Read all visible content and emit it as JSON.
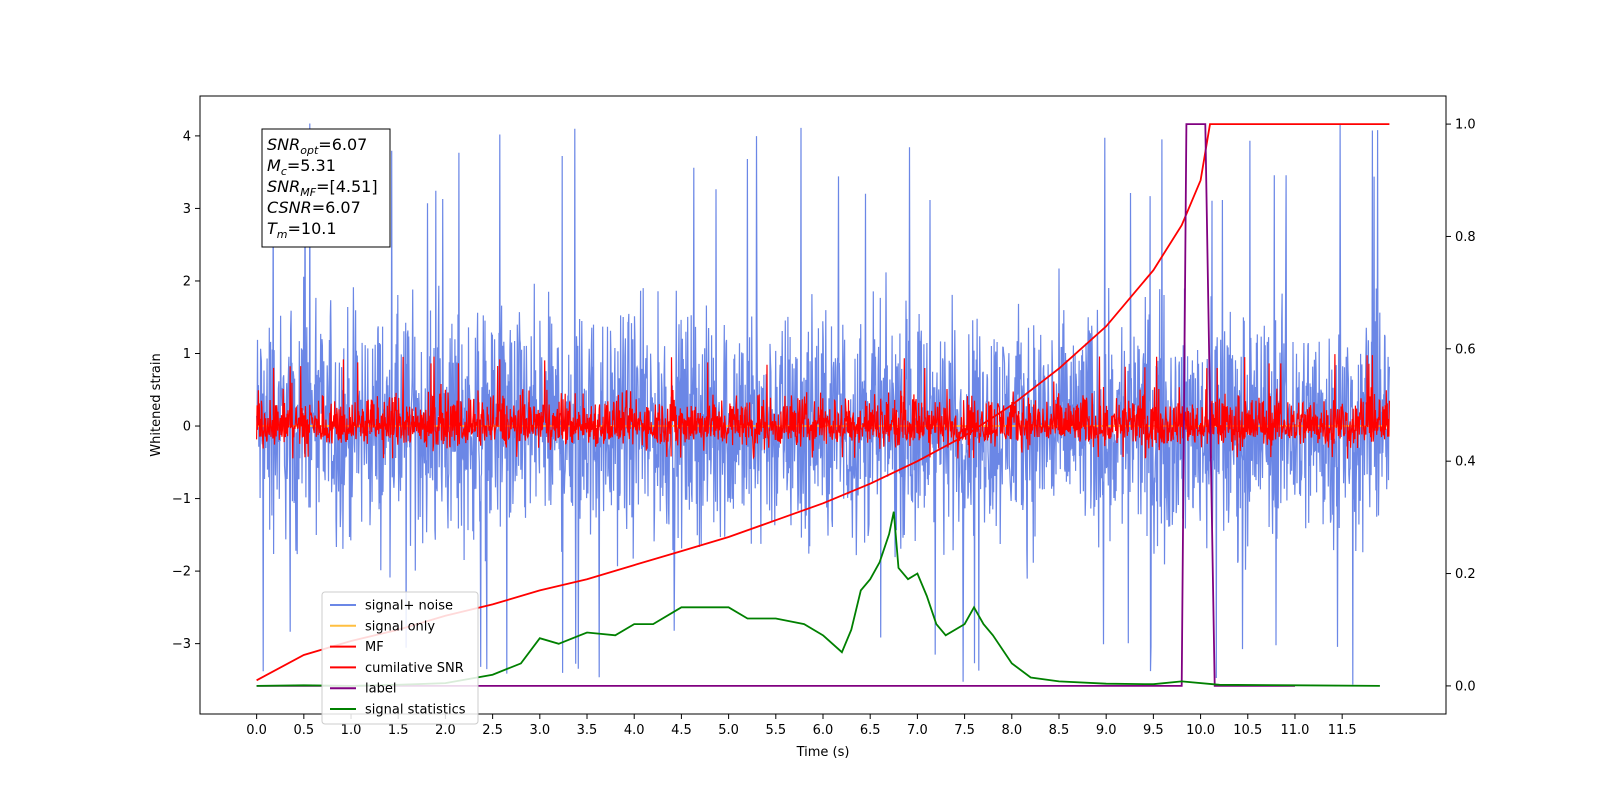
{
  "chart_data": {
    "type": "line",
    "xlabel": "Time (s)",
    "ylabel": "Whitened strain",
    "xlim": [
      -0.6,
      12.6
    ],
    "ylim": [
      -3.97,
      4.55
    ],
    "ylim_right": [
      -0.05,
      1.05
    ],
    "x_ticks": [
      0.0,
      0.5,
      1.0,
      1.5,
      2.0,
      2.5,
      3.0,
      3.5,
      4.0,
      4.5,
      5.0,
      5.5,
      6.0,
      6.5,
      7.0,
      7.5,
      8.0,
      8.5,
      9.0,
      9.5,
      10.0,
      10.5,
      11.0,
      11.5
    ],
    "x_tick_labels": [
      "0.0",
      "0.5",
      "1.0",
      "1.5",
      "2.0",
      "2.5",
      "3.0",
      "3.5",
      "4.0",
      "4.5",
      "5.0",
      "5.5",
      "6.0",
      "6.5",
      "7.0",
      "7.5",
      "8.0",
      "8.5",
      "9.0",
      "9.5",
      "10.0",
      "10.5",
      "11.0",
      "11.5"
    ],
    "y_ticks_left": [
      -3,
      -2,
      -1,
      0,
      1,
      2,
      3,
      4
    ],
    "y_tick_labels_left": [
      "−3",
      "−2",
      "−1",
      "0",
      "1",
      "2",
      "3",
      "4"
    ],
    "y_ticks_right": [
      0.0,
      0.2,
      0.4,
      0.6,
      0.8,
      1.0
    ],
    "y_tick_labels_right": [
      "0.0",
      "0.2",
      "0.4",
      "0.6",
      "0.8",
      "1.0"
    ],
    "grid": false,
    "legend_position": "lower-left",
    "series": [
      {
        "name": "signal+ noise",
        "color": "#6b87e6",
        "axis": "left",
        "style": "noise",
        "x_range": [
          0.0,
          12.0
        ],
        "mean": 0.0,
        "typical_range": [
          -2.3,
          2.3
        ],
        "peak_range": [
          -3.6,
          4.2
        ]
      },
      {
        "name": "signal only",
        "color": "#ffbf40",
        "axis": "left",
        "style": "line",
        "x": [
          0.0,
          12.0
        ],
        "y": [
          0.0,
          0.0
        ]
      },
      {
        "name": "MF",
        "color": "#ff0000",
        "axis": "left",
        "style": "noise",
        "x_range": [
          0.0,
          12.0
        ],
        "mean": 0.0,
        "typical_range": [
          -0.4,
          0.65
        ],
        "peak_range": [
          -0.45,
          1.0
        ]
      },
      {
        "name": "cumilative SNR",
        "color": "#ff0000",
        "axis": "right",
        "style": "line",
        "x": [
          0.0,
          0.5,
          1.0,
          1.5,
          2.0,
          2.5,
          3.0,
          3.5,
          4.0,
          4.5,
          5.0,
          5.5,
          6.0,
          6.5,
          7.0,
          7.5,
          8.0,
          8.5,
          9.0,
          9.5,
          9.8,
          10.0,
          10.1,
          10.2,
          11.0,
          12.0
        ],
        "y": [
          0.01,
          0.055,
          0.08,
          0.1,
          0.125,
          0.145,
          0.17,
          0.19,
          0.215,
          0.24,
          0.265,
          0.295,
          0.325,
          0.36,
          0.4,
          0.445,
          0.5,
          0.565,
          0.64,
          0.74,
          0.82,
          0.9,
          1.0,
          1.0,
          1.0,
          1.0
        ]
      },
      {
        "name": "label",
        "color": "#800080",
        "axis": "right",
        "style": "line",
        "x": [
          0.0,
          9.8,
          9.85,
          10.05,
          10.15,
          11.0
        ],
        "y": [
          0.0,
          0.0,
          1.0,
          1.0,
          0.0,
          0.0
        ]
      },
      {
        "name": "signal statistics",
        "color": "#008000",
        "axis": "right",
        "style": "line",
        "x": [
          0.0,
          0.5,
          1.0,
          1.5,
          2.0,
          2.5,
          2.8,
          3.0,
          3.2,
          3.5,
          3.8,
          4.0,
          4.2,
          4.5,
          4.8,
          5.0,
          5.2,
          5.5,
          5.8,
          6.0,
          6.2,
          6.3,
          6.4,
          6.5,
          6.6,
          6.7,
          6.75,
          6.8,
          6.9,
          7.0,
          7.1,
          7.2,
          7.3,
          7.5,
          7.6,
          7.7,
          7.8,
          8.0,
          8.2,
          8.5,
          9.0,
          9.5,
          9.8,
          10.2,
          11.0,
          11.9
        ],
        "y": [
          0.0,
          0.001,
          0.0,
          0.002,
          0.005,
          0.02,
          0.04,
          0.085,
          0.075,
          0.095,
          0.09,
          0.11,
          0.11,
          0.14,
          0.14,
          0.14,
          0.12,
          0.12,
          0.11,
          0.09,
          0.06,
          0.1,
          0.17,
          0.19,
          0.22,
          0.27,
          0.31,
          0.21,
          0.19,
          0.2,
          0.16,
          0.11,
          0.09,
          0.11,
          0.14,
          0.11,
          0.09,
          0.04,
          0.015,
          0.008,
          0.004,
          0.003,
          0.008,
          0.002,
          0.001,
          0.0
        ]
      }
    ]
  },
  "annotation": {
    "lines": [
      {
        "main": "SNR",
        "sub": "opt",
        "rest": "=6.07"
      },
      {
        "main": "M",
        "sub": "c",
        "rest": "=5.31"
      },
      {
        "main": "SNR",
        "sub": "MF",
        "rest": "=[4.51]"
      },
      {
        "main": "CSNR",
        "sub": "",
        "rest": "=6.07"
      },
      {
        "main": "T",
        "sub": "m",
        "rest": "=10.1"
      }
    ]
  }
}
